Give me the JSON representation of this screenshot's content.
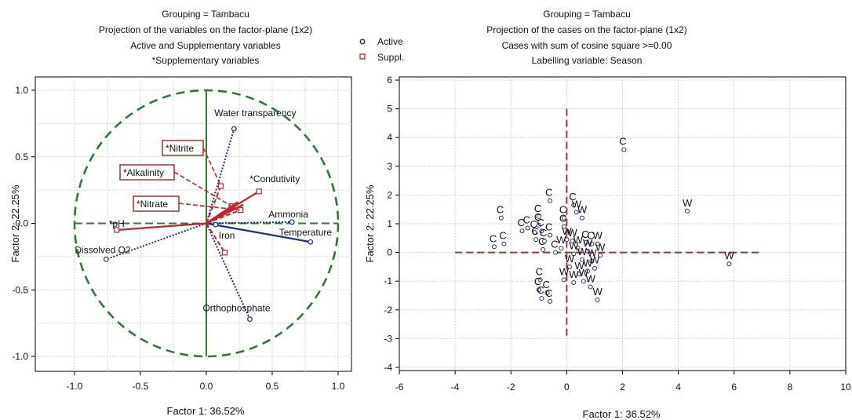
{
  "legend": {
    "items": [
      {
        "label": "Active",
        "marker": "circle",
        "color": "#1f2f8f"
      },
      {
        "label": "Suppl.",
        "marker": "square",
        "color": "#c0282a"
      }
    ]
  },
  "colors": {
    "active": "#1f2f8f",
    "supplementary": "#c0282a",
    "circle": "#2e7d32",
    "axis_line": "#2e7d32",
    "case_cross": "#c0282a"
  },
  "chart_data": [
    {
      "type": "scatter",
      "title_lines": [
        "Grouping = Tambacu",
        "Projection of the variables on the factor-plane (1x2)",
        "Active and Supplementary variables",
        "*Supplementary variables"
      ],
      "xlabel": "Factor 1: 36.52%",
      "ylabel": "Factor 2: 22.25%",
      "xlim": [
        -1.0,
        1.0
      ],
      "ylim": [
        -1.0,
        1.0
      ],
      "xticks": [
        "-1.0",
        "-0.5",
        "0.0",
        "0.5",
        "1.0"
      ],
      "yticks": [
        "1.0",
        "0.5",
        "0.0",
        "-0.5",
        "-1.0"
      ],
      "xtick_values": [
        -1.0,
        -0.5,
        0.0,
        0.5,
        1.0
      ],
      "ytick_values": [
        1.0,
        0.5,
        0.0,
        -0.5,
        -1.0
      ],
      "grid": true,
      "unit_circle": true,
      "active_variables": [
        {
          "label": "Water transparency",
          "x": 0.21,
          "y": 0.71
        },
        {
          "label": "Ammonia",
          "x": 0.65,
          "y": 0.01
        },
        {
          "label": "Temperature",
          "x": 0.79,
          "y": -0.14
        },
        {
          "label": "Iron",
          "x": 0.07,
          "y": -0.01
        },
        {
          "label": "Orthophosphate",
          "x": 0.33,
          "y": -0.72
        },
        {
          "label": "Dissolved O2",
          "x": -0.76,
          "y": -0.27
        }
      ],
      "supplementary_variables": [
        {
          "label": "*Nitrite",
          "x": 0.11,
          "y": 0.28
        },
        {
          "label": "*Alkalinity",
          "x": 0.19,
          "y": 0.13
        },
        {
          "label": "*Nitrate",
          "x": 0.26,
          "y": 0.1
        },
        {
          "label": "*Condutivity",
          "x": 0.4,
          "y": 0.24
        },
        {
          "label": "*pH",
          "x": -0.68,
          "y": -0.05
        },
        {
          "label": "",
          "x": 0.14,
          "y": -0.22
        }
      ]
    },
    {
      "type": "scatter",
      "title_lines": [
        "Grouping = Tambacu",
        "Projection of the cases on the factor-plane (1x2)",
        "Cases with sum of cosine square >=0.00",
        "Labelling variable: Season"
      ],
      "xlabel": "Factor 1: 36.52%",
      "ylabel": "Factor 2: 22.25%",
      "xlim": [
        -6,
        10
      ],
      "ylim": [
        -4,
        6
      ],
      "xticks": [
        "-6",
        "-4",
        "-2",
        "0",
        "2",
        "4",
        "6",
        "8",
        "10"
      ],
      "yticks": [
        "6",
        "5",
        "4",
        "3",
        "2",
        "1",
        "0",
        "-1",
        "-2",
        "-3",
        "-4"
      ],
      "xtick_values": [
        -6,
        -4,
        -2,
        0,
        2,
        4,
        6,
        8,
        10
      ],
      "ytick_values": [
        6,
        5,
        4,
        3,
        2,
        1,
        0,
        -1,
        -2,
        -3,
        -4
      ],
      "grid": true,
      "cases": [
        {
          "label": "C",
          "x": 2.05,
          "y": 3.58
        },
        {
          "label": "W",
          "x": 4.32,
          "y": 1.44
        },
        {
          "label": "W",
          "x": 5.82,
          "y": -0.4
        },
        {
          "label": "C",
          "x": -0.6,
          "y": 1.8
        },
        {
          "label": "C",
          "x": 0.25,
          "y": 1.65
        },
        {
          "label": "C",
          "x": -2.35,
          "y": 1.2
        },
        {
          "label": "C",
          "x": -1.0,
          "y": 1.25
        },
        {
          "label": "C",
          "x": -0.1,
          "y": 1.2
        },
        {
          "label": "W",
          "x": 0.35,
          "y": 1.4
        },
        {
          "label": "W",
          "x": 0.55,
          "y": 1.2
        },
        {
          "label": "C",
          "x": -1.0,
          "y": 0.95
        },
        {
          "label": "C",
          "x": -1.6,
          "y": 0.75
        },
        {
          "label": "C",
          "x": -1.4,
          "y": 0.85
        },
        {
          "label": "C",
          "x": -1.15,
          "y": 0.7
        },
        {
          "label": "C",
          "x": -0.9,
          "y": 0.75
        },
        {
          "label": "C",
          "x": -0.6,
          "y": 0.6
        },
        {
          "label": "C",
          "x": -0.1,
          "y": 0.9
        },
        {
          "label": "C",
          "x": -2.6,
          "y": 0.2
        },
        {
          "label": "C",
          "x": -2.25,
          "y": 0.3
        },
        {
          "label": "C",
          "x": -1.1,
          "y": 0.45
        },
        {
          "label": "C",
          "x": -0.8,
          "y": 0.4
        },
        {
          "label": "W",
          "x": 0.0,
          "y": 0.45
        },
        {
          "label": "W",
          "x": 0.2,
          "y": 0.4
        },
        {
          "label": "C",
          "x": 0.7,
          "y": 0.35
        },
        {
          "label": "C",
          "x": 0.9,
          "y": 0.3
        },
        {
          "label": "W",
          "x": 1.1,
          "y": 0.3
        },
        {
          "label": "W",
          "x": 0.4,
          "y": 0.15
        },
        {
          "label": "W",
          "x": 0.75,
          "y": 0.05
        },
        {
          "label": "C",
          "x": -0.85,
          "y": 0.1
        },
        {
          "label": "C",
          "x": -0.4,
          "y": 0.0
        },
        {
          "label": "W",
          "x": -0.2,
          "y": 0.15
        },
        {
          "label": "W",
          "x": 0.25,
          "y": -0.05
        },
        {
          "label": "W",
          "x": 0.55,
          "y": -0.25
        },
        {
          "label": "W",
          "x": 0.9,
          "y": -0.3
        },
        {
          "label": "W",
          "x": 1.2,
          "y": -0.1
        },
        {
          "label": "W",
          "x": 0.1,
          "y": -0.5
        },
        {
          "label": "W",
          "x": 0.45,
          "y": -0.75
        },
        {
          "label": "W",
          "x": 0.75,
          "y": -0.65
        },
        {
          "label": "W",
          "x": 1.0,
          "y": -0.55
        },
        {
          "label": "W",
          "x": -0.1,
          "y": -0.95
        },
        {
          "label": "W",
          "x": 0.25,
          "y": -1.05
        },
        {
          "label": "W",
          "x": 0.6,
          "y": -1.0
        },
        {
          "label": "W",
          "x": 0.85,
          "y": -1.2
        },
        {
          "label": "W",
          "x": 1.1,
          "y": -1.65
        },
        {
          "label": "C",
          "x": -0.95,
          "y": -0.95
        },
        {
          "label": "C",
          "x": -1.0,
          "y": -1.3
        },
        {
          "label": "C",
          "x": -0.7,
          "y": -1.4
        },
        {
          "label": "C",
          "x": -0.6,
          "y": -1.7
        },
        {
          "label": "C",
          "x": -0.9,
          "y": -1.6
        }
      ]
    }
  ]
}
